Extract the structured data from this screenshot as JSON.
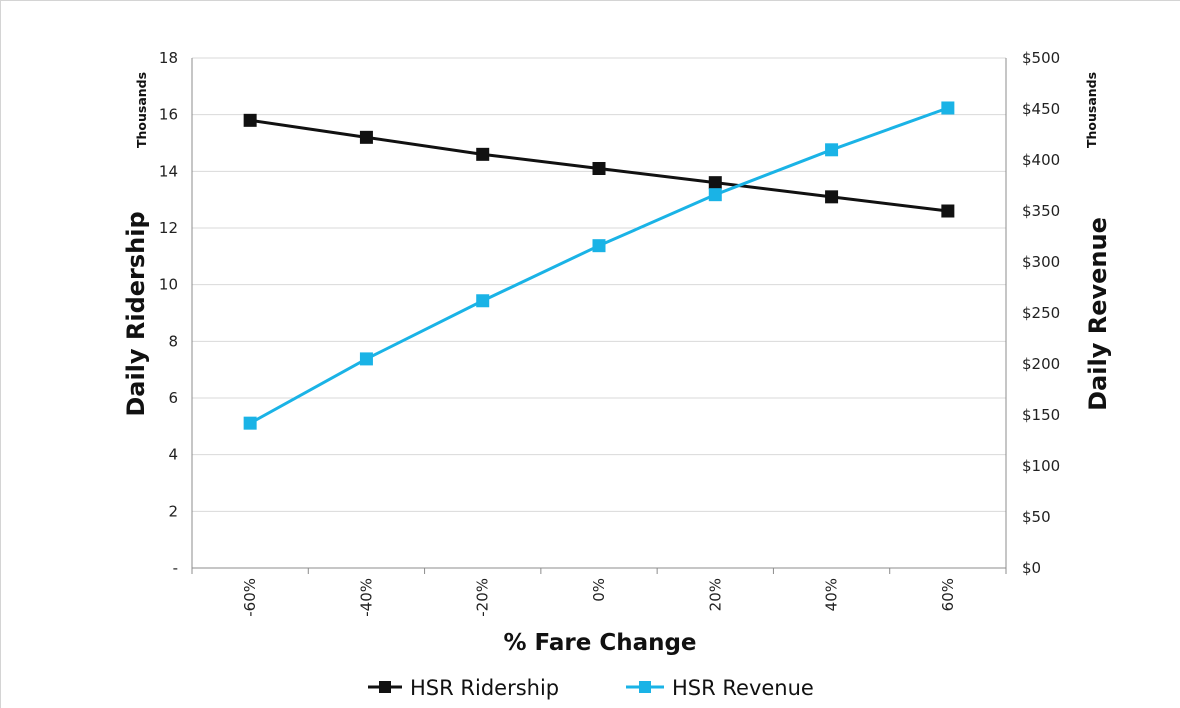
{
  "chart_data": {
    "type": "line",
    "xlabel": "% Fare Change",
    "categories": [
      "-60%",
      "-40%",
      "-20%",
      "0%",
      "20%",
      "40%",
      "60%"
    ],
    "y_left": {
      "label": "Daily Ridership",
      "units": "Thousands",
      "ylim": [
        0,
        18
      ],
      "ticks": [
        "-",
        "2",
        "4",
        "6",
        "8",
        "10",
        "12",
        "14",
        "16",
        "18"
      ],
      "tick_values": [
        0,
        2,
        4,
        6,
        8,
        10,
        12,
        14,
        16,
        18
      ]
    },
    "y_right": {
      "label": "Daily Revenue",
      "units": "Thousands",
      "ylim": [
        0,
        500
      ],
      "ticks": [
        "$0",
        "$50",
        "$100",
        "$150",
        "$200",
        "$250",
        "$300",
        "$350",
        "$400",
        "$450",
        "$500"
      ],
      "tick_values": [
        0,
        50,
        100,
        150,
        200,
        250,
        300,
        350,
        400,
        450,
        500
      ]
    },
    "series": [
      {
        "name": "HSR Ridership",
        "axis": "left",
        "color": "#111111",
        "marker": "square",
        "values": [
          15.8,
          15.2,
          14.6,
          14.1,
          13.6,
          13.1,
          12.6
        ]
      },
      {
        "name": "HSR Revenue",
        "axis": "right",
        "color": "#1ab3e6",
        "marker": "square",
        "values": [
          142,
          205,
          262,
          316,
          366,
          410,
          451
        ]
      }
    ],
    "grid": true,
    "legend_position": "bottom"
  }
}
